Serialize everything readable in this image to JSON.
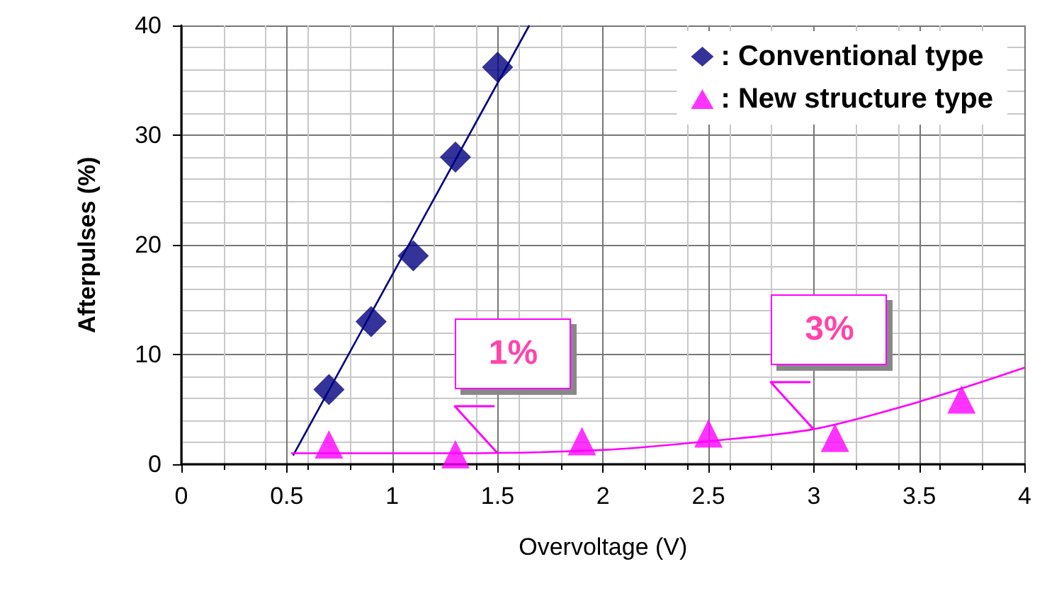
{
  "chart_data": {
    "type": "scatter",
    "xlabel": "Overvoltage (V)",
    "ylabel": "Afterpulses (%)",
    "xlim": [
      0,
      4
    ],
    "xticks": [
      0,
      0.5,
      1,
      1.5,
      2,
      2.5,
      3,
      3.5,
      4
    ],
    "ylim": [
      0,
      40
    ],
    "yticks": [
      0,
      10,
      20,
      30,
      40
    ],
    "grid": true,
    "legend": "top right",
    "series": [
      {
        "name": ": Conventional type",
        "color": "#000080",
        "marker": "diamond",
        "x": [
          0.7,
          0.9,
          1.1,
          1.3,
          1.5
        ],
        "values": [
          6.8,
          13,
          19,
          28,
          36.2
        ]
      },
      {
        "name": ": New structure type",
        "color": "#ff00ff",
        "marker": "triangle",
        "x": [
          0.7,
          1.3,
          1.9,
          2.5,
          3.1,
          3.7
        ],
        "values": [
          1.8,
          0.9,
          2.1,
          2.8,
          2.4,
          5.9
        ]
      },
      {
        "type": "line",
        "color": "#000080",
        "marker": "none",
        "x": [
          0.53,
          1.65
        ],
        "values": [
          0.8,
          40
        ]
      },
      {
        "type": "line",
        "color": "#ff00ff",
        "marker": "none",
        "x": [
          0.52,
          1.3,
          2,
          2.5,
          3,
          3.5,
          4
        ],
        "values": [
          1,
          1,
          1.3,
          2.1,
          3.2,
          5.7,
          8.8
        ]
      }
    ],
    "annotations": [
      {
        "text": "1%",
        "x": 1.5,
        "y": 1
      },
      {
        "text": "3%",
        "x": 3,
        "y": 3.2
      }
    ]
  }
}
